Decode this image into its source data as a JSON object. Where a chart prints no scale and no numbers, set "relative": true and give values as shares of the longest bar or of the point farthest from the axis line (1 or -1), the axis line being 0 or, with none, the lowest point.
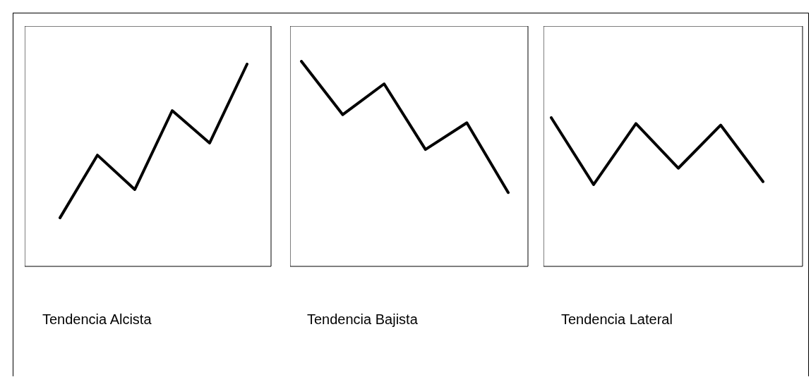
{
  "chart_data": [
    {
      "type": "line",
      "title": "Tendencia Alcista",
      "categories": [
        null,
        null,
        null,
        null,
        null,
        null
      ],
      "series": [
        {
          "color": "#000000",
          "values": [
            0.24,
            0.55,
            0.38,
            0.77,
            0.61,
            1
          ]
        }
      ],
      "relative": true,
      "marker": "none"
    },
    {
      "type": "line",
      "title": "Tendencia Bajista",
      "categories": [
        null,
        null,
        null,
        null,
        null,
        null
      ],
      "series": [
        {
          "color": "#000000",
          "values": [
            1,
            0.74,
            0.89,
            0.57,
            0.7,
            0.36
          ]
        }
      ],
      "relative": true,
      "marker": "none"
    },
    {
      "type": "line",
      "title": "Tendencia Lateral",
      "categories": [
        null,
        null,
        null,
        null,
        null,
        null
      ],
      "series": [
        {
          "color": "#000000",
          "values": [
            1,
            0.55,
            0.96,
            0.66,
            0.95,
            0.57
          ]
        }
      ],
      "relative": true,
      "marker": "none"
    }
  ]
}
